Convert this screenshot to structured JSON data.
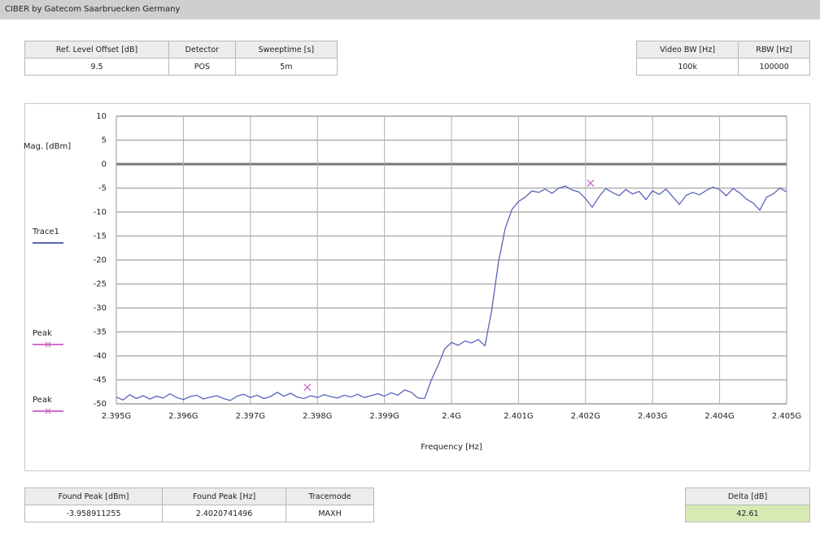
{
  "header": {
    "title": "CIBER by Gatecom Saarbruecken Germany"
  },
  "settings_left": {
    "headers": [
      "Ref. Level Offset [dB]",
      "Detector",
      "Sweeptime [s]"
    ],
    "values": [
      "9.5",
      "POS",
      "5m"
    ]
  },
  "settings_right": {
    "headers": [
      "Video BW [Hz]",
      "RBW [Hz]"
    ],
    "values": [
      "100k",
      "100000"
    ]
  },
  "results_left": {
    "headers": [
      "Found Peak [dBm]",
      "Found Peak [Hz]",
      "Tracemode"
    ],
    "values": [
      "-3.958911255",
      "2.4020741496",
      "MAXH"
    ]
  },
  "results_right": {
    "headers": [
      "Delta [dB]"
    ],
    "values": [
      "42.61"
    ]
  },
  "chart_data": {
    "type": "line",
    "xlabel": "Frequency [Hz]",
    "ylabel": "Mag. [dBm]",
    "xlim": [
      2395000000,
      2405000000
    ],
    "xticks": [
      {
        "value": 2395000000,
        "label": "2.395G"
      },
      {
        "value": 2396000000,
        "label": "2.396G"
      },
      {
        "value": 2397000000,
        "label": "2.397G"
      },
      {
        "value": 2398000000,
        "label": "2.398G"
      },
      {
        "value": 2399000000,
        "label": "2.399G"
      },
      {
        "value": 2400000000,
        "label": "2.4G"
      },
      {
        "value": 2401000000,
        "label": "2.401G"
      },
      {
        "value": 2402000000,
        "label": "2.402G"
      },
      {
        "value": 2403000000,
        "label": "2.403G"
      },
      {
        "value": 2404000000,
        "label": "2.404G"
      },
      {
        "value": 2405000000,
        "label": "2.405G"
      }
    ],
    "ylim": [
      -50,
      10
    ],
    "yticks": [
      10,
      5,
      0,
      -5,
      -10,
      -15,
      -20,
      -25,
      -30,
      -35,
      -40,
      -45,
      -50
    ],
    "grid": true,
    "series": [
      {
        "name": "Trace1",
        "color": "#5a64b8",
        "x": [
          2395000000,
          2395100000,
          2395200000,
          2395300000,
          2395400000,
          2395500000,
          2395600000,
          2395700000,
          2395800000,
          2395900000,
          2396000000,
          2396100000,
          2396200000,
          2396300000,
          2396400000,
          2396500000,
          2396600000,
          2396700000,
          2396800000,
          2396900000,
          2397000000,
          2397100000,
          2397200000,
          2397300000,
          2397400000,
          2397500000,
          2397600000,
          2397700000,
          2397800000,
          2397900000,
          2398000000,
          2398100000,
          2398200000,
          2398300000,
          2398400000,
          2398500000,
          2398600000,
          2398700000,
          2398800000,
          2398900000,
          2399000000,
          2399100000,
          2399200000,
          2399300000,
          2399400000,
          2399500000,
          2399600000,
          2399700000,
          2399800000,
          2399900000,
          2400000000,
          2400100000,
          2400200000,
          2400300000,
          2400400000,
          2400500000,
          2400600000,
          2400700000,
          2400800000,
          2400900000,
          2401000000,
          2401100000,
          2401200000,
          2401300000,
          2401400000,
          2401500000,
          2401600000,
          2401700000,
          2401800000,
          2401900000,
          2402000000,
          2402100000,
          2402200000,
          2402300000,
          2402400000,
          2402500000,
          2402600000,
          2402700000,
          2402800000,
          2402900000,
          2403000000,
          2403100000,
          2403200000,
          2403300000,
          2403400000,
          2403500000,
          2403600000,
          2403700000,
          2403800000,
          2403900000,
          2404000000,
          2404100000,
          2404200000,
          2404300000,
          2404400000,
          2404500000,
          2404600000,
          2404700000,
          2404800000,
          2404900000,
          2405000000
        ],
        "values": [
          -48.6,
          -49.2,
          -48.1,
          -48.9,
          -48.3,
          -49.0,
          -48.4,
          -48.8,
          -47.9,
          -48.7,
          -49.1,
          -48.5,
          -48.2,
          -49.0,
          -48.6,
          -48.3,
          -48.9,
          -49.3,
          -48.4,
          -48.0,
          -48.7,
          -48.2,
          -48.9,
          -48.5,
          -47.6,
          -48.4,
          -47.8,
          -48.6,
          -48.9,
          -48.3,
          -48.7,
          -48.1,
          -48.5,
          -48.8,
          -48.2,
          -48.6,
          -48.0,
          -48.7,
          -48.3,
          -47.9,
          -48.4,
          -47.7,
          -48.2,
          -47.1,
          -47.6,
          -48.8,
          -48.9,
          -45,
          -42,
          -38.5,
          -37.2,
          -37.8,
          -36.9,
          -37.3,
          -36.6,
          -37.9,
          -30.5,
          -20.5,
          -13.5,
          -9.5,
          -7.8,
          -6.9,
          -5.6,
          -5.9,
          -5.2,
          -6.1,
          -5.0,
          -4.6,
          -5.4,
          -5.8,
          -7.2,
          -9.0,
          -6.8,
          -5.1,
          -5.9,
          -6.6,
          -5.3,
          -6.2,
          -5.7,
          -7.4,
          -5.6,
          -6.3,
          -5.2,
          -6.8,
          -8.4,
          -6.5,
          -5.9,
          -6.4,
          -5.5,
          -4.8,
          -5.3,
          -6.6,
          -5.1,
          -6.0,
          -7.3,
          -8.1,
          -9.6,
          -6.9,
          -6.2,
          -5.0,
          -5.8
        ]
      },
      {
        "name": "Peak",
        "color": "#d070c8",
        "x": [
          2402074149.6
        ],
        "values": [
          -3.958911255
        ]
      },
      {
        "name": "Peak",
        "color": "#d070c8",
        "x": [
          2397850000
        ],
        "values": [
          -46.57
        ]
      }
    ]
  }
}
